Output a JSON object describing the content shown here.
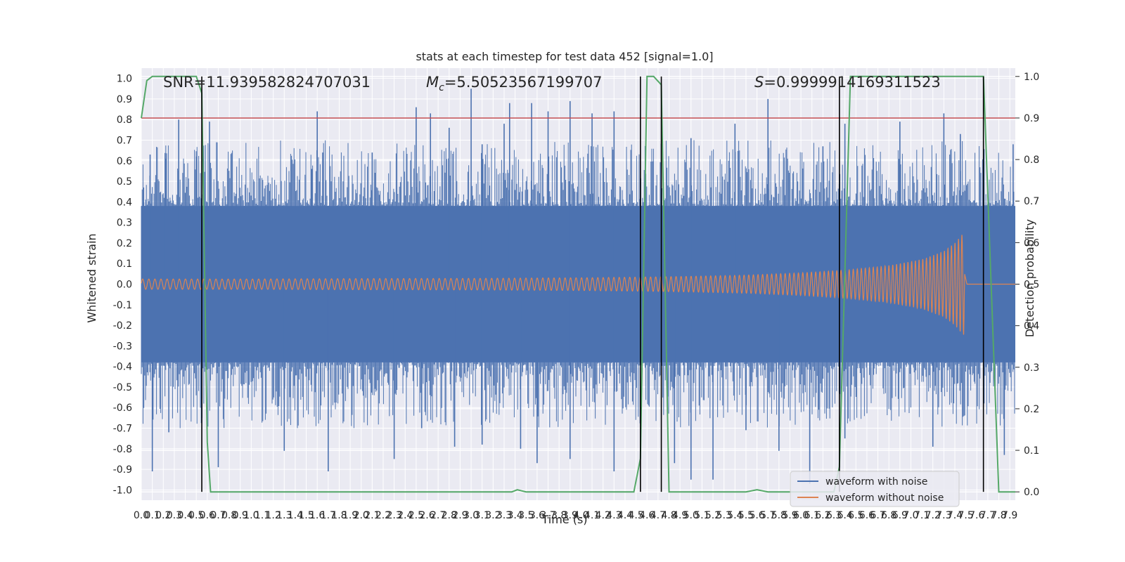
{
  "chart_data": {
    "type": "line",
    "title": "stats at each timestep for test data 452 [signal=1.0]",
    "xlabel": "Time (s)",
    "ylabel": "Whitened strain",
    "y2label": "Detection probability",
    "xlim": [
      0.0,
      7.95
    ],
    "ylim": [
      -1.05,
      1.05
    ],
    "y2lim": [
      -0.02,
      1.02
    ],
    "x_ticks": [
      0.0,
      0.1,
      0.2,
      0.3,
      0.4,
      0.5,
      0.6,
      0.7,
      0.8,
      0.9,
      1.0,
      1.1,
      1.2,
      1.3,
      1.4,
      1.5,
      1.6,
      1.7,
      1.8,
      1.9,
      2.0,
      2.1,
      2.2,
      2.3,
      2.4,
      2.5,
      2.6,
      2.7,
      2.8,
      2.9,
      3.0,
      3.1,
      3.2,
      3.3,
      3.4,
      3.5,
      3.6,
      3.7,
      3.8,
      3.9,
      4.0,
      4.1,
      4.2,
      4.3,
      4.4,
      4.5,
      4.6,
      4.7,
      4.8,
      4.9,
      5.0,
      5.1,
      5.2,
      5.3,
      5.4,
      5.5,
      5.6,
      5.7,
      5.8,
      5.9,
      6.0,
      6.1,
      6.2,
      6.3,
      6.4,
      6.5,
      6.6,
      6.7,
      6.8,
      6.9,
      7.0,
      7.1,
      7.2,
      7.3,
      7.4,
      7.5,
      7.6,
      7.7,
      7.8,
      7.9
    ],
    "y_ticks": [
      1.0,
      0.9,
      0.8,
      0.7,
      0.6,
      0.5,
      0.4,
      0.3,
      0.2,
      0.1,
      0.0,
      -0.1,
      -0.2,
      -0.3,
      -0.4,
      -0.5,
      -0.6,
      -0.7,
      -0.8,
      -0.9,
      -1.0
    ],
    "y2_ticks": [
      1.0,
      0.9,
      0.8,
      0.7,
      0.6,
      0.5,
      0.4,
      0.3,
      0.2,
      0.1,
      0.0
    ],
    "annotations": {
      "snr": "SNR=11.939582824707031",
      "mc_symbol": "M",
      "mc_sub": "c",
      "mc_value": "=5.50523567199707",
      "s_symbol": "S",
      "s_value": "=0.9999914169311523"
    },
    "threshold": {
      "value": 0.9,
      "axis": "right",
      "color": "#c44e52"
    },
    "vlines_x": [
      0.55,
      4.54,
      4.73,
      6.35,
      7.66
    ],
    "series": [
      {
        "name": "waveform with noise",
        "color": "#4c72b0",
        "description": "whitened noisy strain, envelope approx",
        "envelope_base": 0.38,
        "spike_peaks": [
          {
            "x": 0.02,
            "y": 0.47
          },
          {
            "x": 0.08,
            "y": 0.63
          },
          {
            "x": 0.22,
            "y": 0.61
          },
          {
            "x": 0.34,
            "y": 0.8
          },
          {
            "x": 0.5,
            "y": 0.62
          },
          {
            "x": 0.62,
            "y": 0.79
          },
          {
            "x": 1.6,
            "y": 0.84
          },
          {
            "x": 1.55,
            "y": 0.56
          },
          {
            "x": 1.65,
            "y": 0.64
          },
          {
            "x": 2.1,
            "y": 0.64
          },
          {
            "x": 2.5,
            "y": 0.86
          },
          {
            "x": 2.63,
            "y": 0.83
          },
          {
            "x": 2.8,
            "y": 0.76
          },
          {
            "x": 3.0,
            "y": 0.95
          },
          {
            "x": 3.1,
            "y": 0.68
          },
          {
            "x": 3.3,
            "y": 0.78
          },
          {
            "x": 3.35,
            "y": 0.88
          },
          {
            "x": 3.55,
            "y": 0.88
          },
          {
            "x": 3.7,
            "y": 0.84
          },
          {
            "x": 3.9,
            "y": 0.89
          },
          {
            "x": 4.1,
            "y": 0.83
          },
          {
            "x": 4.3,
            "y": 0.84
          },
          {
            "x": 5.0,
            "y": 0.71
          },
          {
            "x": 5.4,
            "y": 0.78
          },
          {
            "x": 5.7,
            "y": 0.9
          },
          {
            "x": 6.2,
            "y": 0.67
          },
          {
            "x": 6.4,
            "y": 0.78
          },
          {
            "x": 6.9,
            "y": 0.79
          },
          {
            "x": 7.3,
            "y": 0.83
          },
          {
            "x": 7.45,
            "y": 0.73
          },
          {
            "x": 7.93,
            "y": 0.68
          }
        ],
        "trough_peaks": [
          {
            "x": 0.1,
            "y": -0.91
          },
          {
            "x": 0.25,
            "y": -0.72
          },
          {
            "x": 0.55,
            "y": -0.65
          },
          {
            "x": 0.7,
            "y": -0.89
          },
          {
            "x": 1.3,
            "y": -0.81
          },
          {
            "x": 1.7,
            "y": -0.91
          },
          {
            "x": 2.3,
            "y": -0.85
          },
          {
            "x": 2.55,
            "y": -0.7
          },
          {
            "x": 2.85,
            "y": -0.79
          },
          {
            "x": 3.1,
            "y": -0.78
          },
          {
            "x": 3.45,
            "y": -0.8
          },
          {
            "x": 3.6,
            "y": -0.87
          },
          {
            "x": 3.9,
            "y": -0.85
          },
          {
            "x": 4.3,
            "y": -0.91
          },
          {
            "x": 4.85,
            "y": -0.87
          },
          {
            "x": 5.0,
            "y": -0.95
          },
          {
            "x": 5.2,
            "y": -0.95
          },
          {
            "x": 5.5,
            "y": -0.71
          },
          {
            "x": 5.8,
            "y": -0.81
          },
          {
            "x": 6.08,
            "y": -0.97
          },
          {
            "x": 6.4,
            "y": -0.75
          },
          {
            "x": 7.2,
            "y": -0.79
          },
          {
            "x": 7.85,
            "y": -0.83
          }
        ]
      },
      {
        "name": "waveform without noise",
        "color": "#dd8452",
        "description": "chirp amplitude envelope (x, amplitude)",
        "amplitude": [
          [
            0.0,
            0.025
          ],
          [
            1.0,
            0.025
          ],
          [
            2.0,
            0.027
          ],
          [
            3.0,
            0.028
          ],
          [
            4.0,
            0.031
          ],
          [
            4.5,
            0.034
          ],
          [
            5.0,
            0.038
          ],
          [
            5.5,
            0.044
          ],
          [
            6.0,
            0.055
          ],
          [
            6.4,
            0.068
          ],
          [
            6.8,
            0.09
          ],
          [
            7.1,
            0.12
          ],
          [
            7.3,
            0.16
          ],
          [
            7.4,
            0.2
          ],
          [
            7.48,
            0.25
          ],
          [
            7.5,
            0.02
          ],
          [
            7.95,
            0.0
          ]
        ],
        "end_time": 7.49
      },
      {
        "name": "detection probability",
        "color": "#55a868",
        "axis": "right",
        "x": [
          0.0,
          0.05,
          0.1,
          0.5,
          0.55,
          0.6,
          0.63,
          0.7,
          1.0,
          2.0,
          3.0,
          3.37,
          3.42,
          3.5,
          4.0,
          4.4,
          4.48,
          4.54,
          4.6,
          4.66,
          4.73,
          4.8,
          5.0,
          5.5,
          5.6,
          5.7,
          6.0,
          6.3,
          6.35,
          6.45,
          7.0,
          7.66,
          7.8,
          7.95
        ],
        "y": [
          0.9,
          0.99,
          1.0,
          1.0,
          0.96,
          0.12,
          0.0,
          0.0,
          0.0,
          0.0,
          0.0,
          0.0,
          0.005,
          0.0,
          0.0,
          0.0,
          0.0,
          0.08,
          1.0,
          1.0,
          0.98,
          0.0,
          0.0,
          0.0,
          0.005,
          0.0,
          0.0,
          0.0,
          0.06,
          1.0,
          1.0,
          1.0,
          0.0,
          0.0
        ]
      }
    ],
    "legend": {
      "placement": "lower-right",
      "entries": [
        {
          "label": "waveform with noise",
          "color": "#4c72b0"
        },
        {
          "label": "waveform without noise",
          "color": "#dd8452"
        }
      ]
    }
  }
}
